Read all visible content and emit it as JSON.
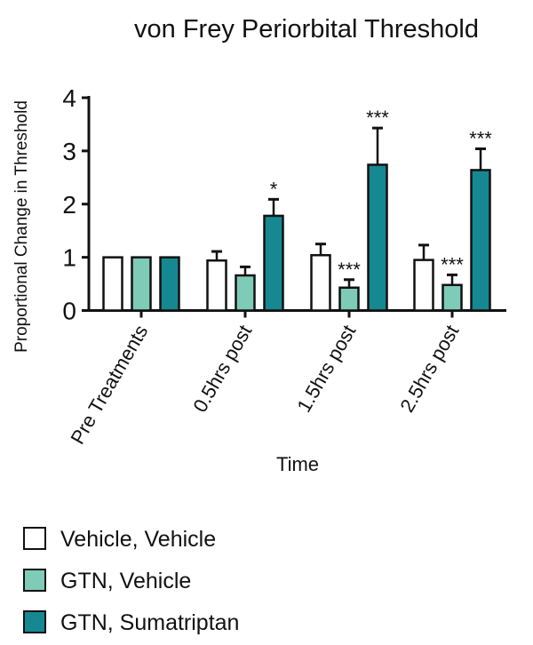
{
  "chart_data": {
    "type": "bar",
    "title": "von  Frey Periorbital Threshold",
    "xlabel": "Time",
    "ylabel": "Proportional Change in  Threshold",
    "ylim": [
      0,
      4
    ],
    "yticks": [
      "0",
      "1",
      "2",
      "3",
      "4"
    ],
    "grid": false,
    "legend_placement": "bottom-left",
    "categories": [
      "Pre Treatments",
      "0.5hrs post",
      "1.5hrs post",
      "2.5hrs post"
    ],
    "series": [
      {
        "name": "Vehicle, Vehicle",
        "color": "#ffffff",
        "values": [
          1.0,
          0.94,
          1.04,
          0.95
        ],
        "error_upper": [
          1.0,
          1.11,
          1.25,
          1.23
        ],
        "annotations": [
          "",
          "",
          "",
          ""
        ]
      },
      {
        "name": "GTN, Vehicle",
        "color": "#7ecbb7",
        "values": [
          1.0,
          0.66,
          0.43,
          0.48
        ],
        "error_upper": [
          1.0,
          0.82,
          0.58,
          0.67
        ],
        "annotations": [
          "",
          "",
          "***",
          "***"
        ]
      },
      {
        "name": "GTN, Sumatriptan",
        "color": "#168892",
        "values": [
          1.0,
          1.78,
          2.74,
          2.64
        ],
        "error_upper": [
          1.0,
          2.09,
          3.43,
          3.04
        ],
        "annotations": [
          "",
          "*",
          "***",
          "***"
        ]
      }
    ]
  }
}
